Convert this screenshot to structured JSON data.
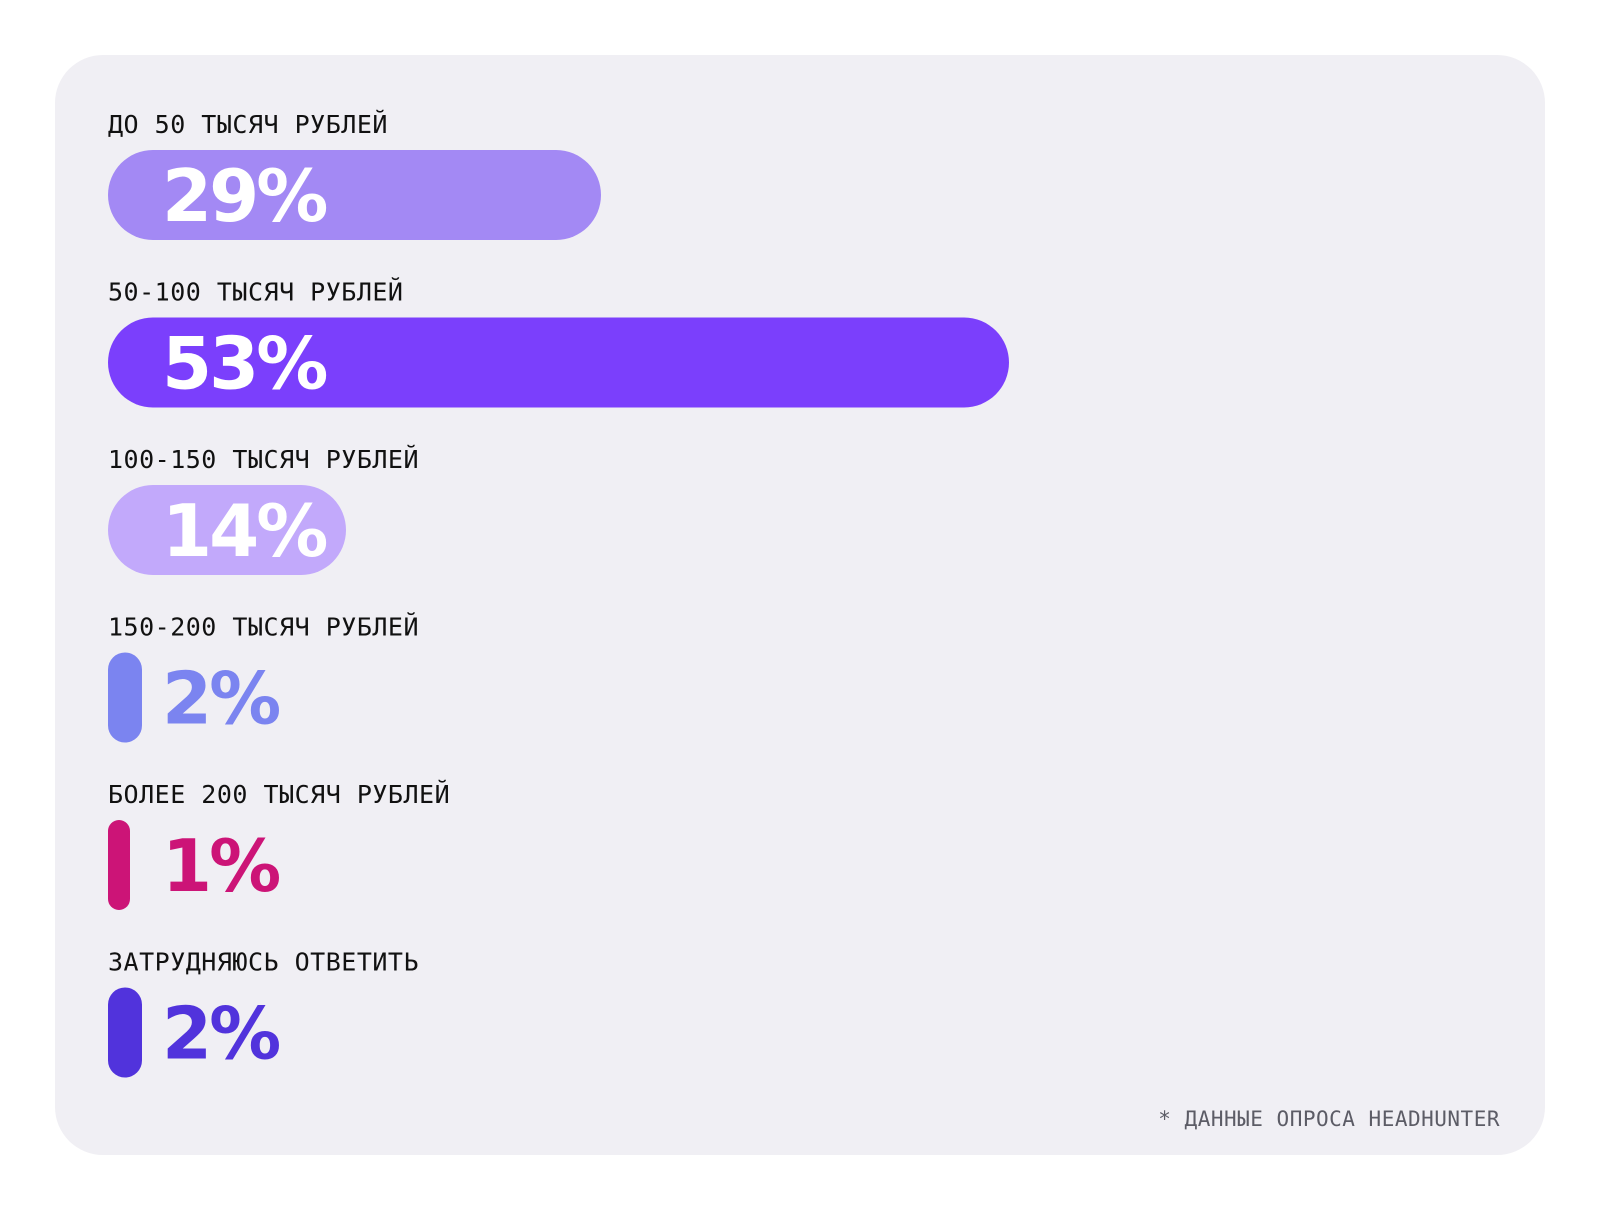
{
  "chart_data": {
    "type": "bar",
    "orientation": "horizontal",
    "categories": [
      "ДО 50 ТЫСЯЧ РУБЛЕЙ",
      "50-100 ТЫСЯЧ РУБЛЕЙ",
      "100-150 ТЫСЯЧ РУБЛЕЙ",
      "150-200 ТЫСЯЧ РУБЛЕЙ",
      "БОЛЕЕ 200 ТЫСЯЧ РУБЛЕЙ",
      "ЗАТРУДНЯЮСЬ ОТВЕТИТЬ"
    ],
    "values": [
      29,
      53,
      14,
      2,
      1,
      2
    ],
    "value_labels": [
      "29%",
      "53%",
      "14%",
      "2%",
      "1%",
      "2%"
    ],
    "unit": "%",
    "colors": [
      "#a389f4",
      "#7b3ffc",
      "#c2a9fb",
      "#7b84f0",
      "#cc1477",
      "#5133dc"
    ],
    "label_text_colors": [
      "#ffffff",
      "#ffffff",
      "#ffffff",
      "#7b84f0",
      "#cc1477",
      "#5133dc"
    ],
    "title": "",
    "xlabel": "",
    "ylabel": "",
    "grid": false,
    "legend": "none"
  },
  "footnote": "* ДАННЫЕ ОПРОСА HEADHUNTER",
  "colors": {
    "card_background": "#f0eff4",
    "page_background": "#ffffff"
  }
}
